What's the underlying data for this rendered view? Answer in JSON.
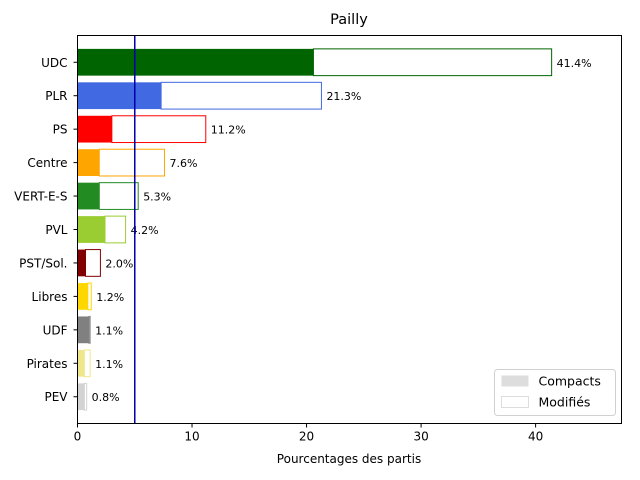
{
  "chart_data": {
    "type": "bar",
    "orientation": "horizontal",
    "title": "Pailly",
    "xlabel": "Pourcentages des partis",
    "ylabel": "",
    "xlim": [
      0,
      47.5
    ],
    "xticks": [
      0,
      10,
      20,
      30,
      40
    ],
    "threshold_line": 5,
    "threshold_color": "#0000aa",
    "grid": false,
    "legend_position": "lower-right",
    "legend": [
      {
        "label": "Compacts",
        "style": "filled",
        "color": "#dddddd"
      },
      {
        "label": "Modifiés",
        "style": "outline",
        "color": "#dddddd"
      }
    ],
    "categories": [
      "UDC",
      "PLR",
      "PS",
      "Centre",
      "VERT-E-S",
      "PVL",
      "PST/Sol.",
      "Libres",
      "UDF",
      "Pirates",
      "PEV"
    ],
    "colors": [
      "#006400",
      "#4169e1",
      "#ff0000",
      "#ffa500",
      "#228b22",
      "#9acd32",
      "#800000",
      "#ffd700",
      "#808080",
      "#f0e68c",
      "#d3d3d3"
    ],
    "series": [
      {
        "name": "Compacts",
        "values": [
          20.6,
          7.3,
          3.0,
          1.9,
          1.9,
          2.4,
          0.7,
          0.9,
          1.0,
          0.6,
          0.6
        ]
      },
      {
        "name": "Modifiés",
        "values": [
          20.8,
          14.0,
          8.2,
          5.7,
          3.4,
          1.8,
          1.3,
          0.3,
          0.1,
          0.5,
          0.2
        ]
      }
    ],
    "totals": [
      41.4,
      21.3,
      11.2,
      7.6,
      5.3,
      4.2,
      2.0,
      1.2,
      1.1,
      1.1,
      0.8
    ],
    "data_labels": [
      "41.4%",
      "21.3%",
      "11.2%",
      "7.6%",
      "5.3%",
      "4.2%",
      "2.0%",
      "1.2%",
      "1.1%",
      "1.1%",
      "0.8%"
    ]
  }
}
